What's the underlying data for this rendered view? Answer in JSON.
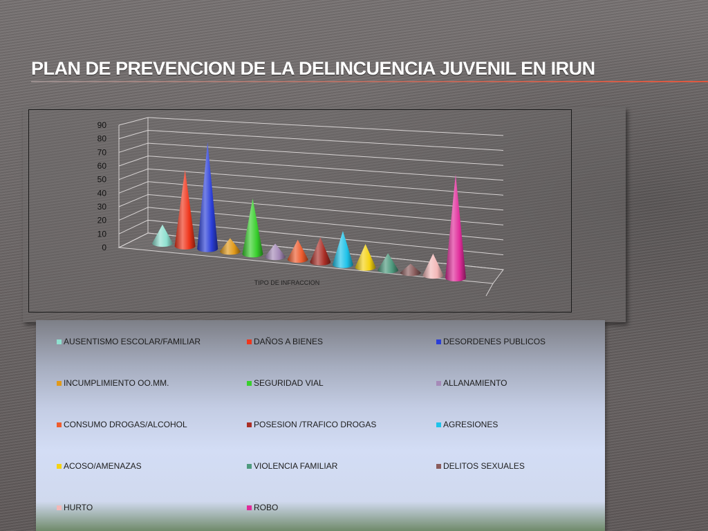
{
  "slide": {
    "title": "PLAN DE PREVENCION DE LA DELINCUENCIA JUVENIL EN IRUN"
  },
  "chart_data": {
    "type": "bar",
    "shape": "3d-cone",
    "title": "",
    "xlabel": "TIPO DE INFRACCION",
    "ylabel": "",
    "ylim": [
      0,
      90
    ],
    "yticks": [
      0,
      10,
      20,
      30,
      40,
      50,
      60,
      70,
      80,
      90
    ],
    "grid": true,
    "legend_position": "bottom",
    "categories": [
      "AUSENTISMO ESCOLAR/FAMILIAR",
      "DAÑOS A BIENES",
      "DESORDENES PUBLICOS",
      "INCUMPLIMIENTO OO.MM.",
      "SEGURIDAD VIAL",
      "ALLANAMIENTO",
      "CONSUMO DROGAS/ALCOHOL",
      "POSESION /TRAFICO DROGAS",
      "AGRESIONES",
      "ACOSO/AMENAZAS",
      "VIOLENCIA FAMILIAR",
      "DELITOS SEXUALES",
      "HURTO",
      "ROBO"
    ],
    "values": [
      14,
      57,
      80,
      10,
      42,
      10,
      15,
      19,
      26,
      18,
      13,
      7,
      17,
      82
    ],
    "colors": [
      "#8fe0cf",
      "#f0361c",
      "#2a3ed8",
      "#e19a1a",
      "#38cf2c",
      "#a58ab8",
      "#ee5c2e",
      "#aa2e26",
      "#1fc3ea",
      "#f5d313",
      "#4e9a7e",
      "#8a5c5c",
      "#f3b8b8",
      "#e02b9a"
    ]
  }
}
